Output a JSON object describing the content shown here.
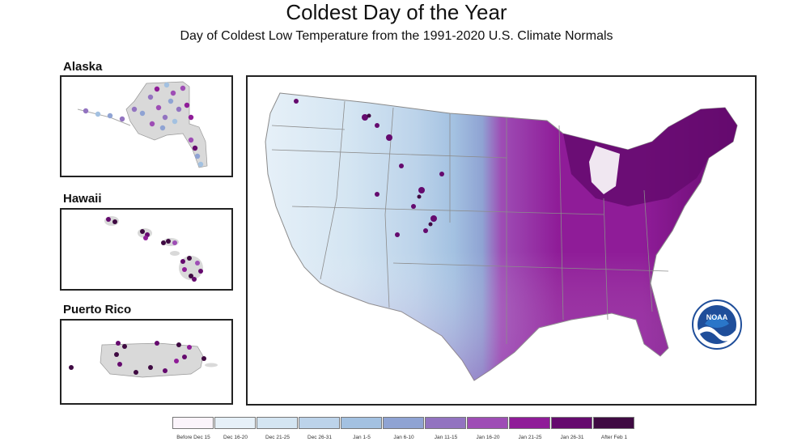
{
  "title": "Coldest Day of the Year",
  "subtitle": "Day of Coldest Low Temperature from the 1991-2020 U.S. Climate Normals",
  "insets": {
    "alaska": "Alaska",
    "hawaii": "Hawaii",
    "puerto_rico": "Puerto Rico"
  },
  "legend": [
    {
      "label": "Before Dec 15",
      "color": "#fbf4fb"
    },
    {
      "label": "Dec 16-20",
      "color": "#e6f0f8"
    },
    {
      "label": "Dec 21-25",
      "color": "#d4e5f2"
    },
    {
      "label": "Dec 26-31",
      "color": "#bcd3ea"
    },
    {
      "label": "Jan 1-5",
      "color": "#a3c1e1"
    },
    {
      "label": "Jan 6-10",
      "color": "#8fa3d3"
    },
    {
      "label": "Jan 11-15",
      "color": "#9273c0"
    },
    {
      "label": "Jan 16-20",
      "color": "#9e4db5"
    },
    {
      "label": "Jan 21-25",
      "color": "#8f1c98"
    },
    {
      "label": "Jan 26-31",
      "color": "#650a6e"
    },
    {
      "label": "After Feb 1",
      "color": "#3f0a42"
    }
  ],
  "logo": {
    "text": "NOAA",
    "icon": "noaa-logo-icon"
  }
}
